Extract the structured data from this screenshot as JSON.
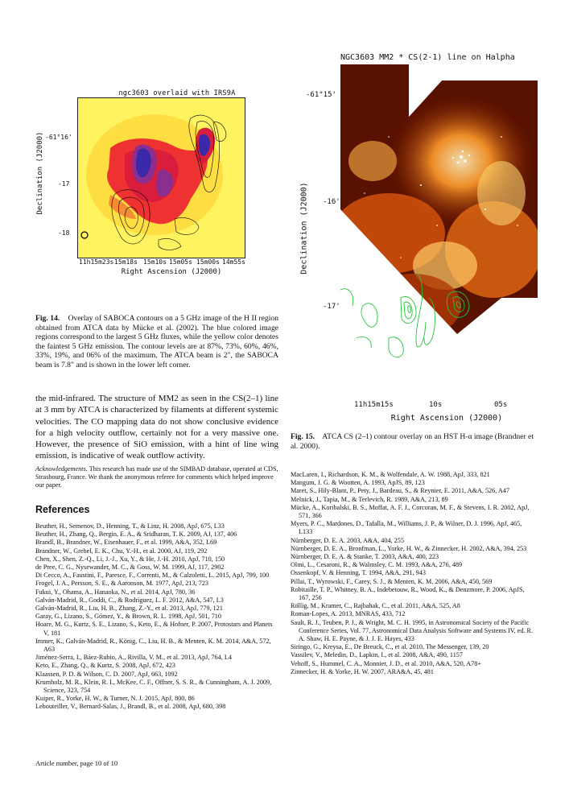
{
  "fig14": {
    "title": "ngc3603 overlaid with IRS9A",
    "ylabel": "Declination (J2000)",
    "xlabel": "Right Ascension (J2000)",
    "yticks": [
      "-61°16'",
      "-17",
      "-18"
    ],
    "xticks": [
      "11h15m23s",
      "15m18s",
      "15m10s",
      "15m05s",
      "15m00s",
      "14m55s"
    ],
    "caption_label": "Fig. 14.",
    "caption_text": "Overlay of SABOCA contours on a 5 GHz image of the H II region obtained from ATCA data by Mücke et al. (2002). The blue colored image regions correspond to the largest 5 GHz fluxes, while the yellow color denotes the faintest 5 GHz emission. The contour levels are at 87%, 73%, 60%, 46%, 33%, 19%, and 06% of the maximum. The ATCA beam is 2\", the SABOCA beam is 7.8\" and is shown in the lower left corner."
  },
  "fig15": {
    "title": "NGC3603 MM2 * CS(2-1) line on Halpha",
    "ylabel": "Declination (J2000)",
    "xlabel": "Right Ascension (J2000)",
    "yticks": [
      "-61°15'",
      "-16'",
      "-17'"
    ],
    "xticks": [
      "11h15m15s",
      "10s",
      "05s"
    ],
    "caption_label": "Fig. 15.",
    "caption_text": "ATCA CS (2–1) contour overlay on an HST H-α image (Brandner et al. 2000)."
  },
  "body_text": "the mid-infrared. The structure of MM2 as seen in the CS(2–1) line at 3 mm by ATCA is characterized by filaments at different systemic velocities. The CO mapping data do not show conclusive evidence for a high velocity outflow, certainly not for a very massive one. However, the presence of SiO emission, with a hint of line wing emission, is indicative of weak outflow activity.",
  "ack_label": "Acknowledgements.",
  "ack_text": "This research has made use of the SIMBAD database, operated at CDS, Strasbourg, France. We thank the anonymous referee for comments which helped improve our paper.",
  "references_heading": "References",
  "refs_left": [
    "Beuther, H., Semenov, D., Henning, T., & Linz, H. 2008, ApJ, 675, L33",
    "Beuther, H., Zhang, Q., Bergin, E. A., & Sridharan, T. K. 2009, AJ, 137, 406",
    "Brandl, B., Brandner, W., Eisenhauer, F., et al. 1999, A&A, 352, L69",
    "Brandner, W., Grebel, E. K., Chu, Y.-H., et al. 2000, AJ, 119, 292",
    "Chen, X., Shen, Z.-Q., Li, J.-J., Xu, Y., & He, J.-H. 2010, ApJ, 710, 150",
    "de Pree, C. G., Nysewander, M. C., & Goss, W. M. 1999, AJ, 117, 2902",
    "Di Cecco, A., Faustini, F., Paresce, F., Correnti, M., & Calzoletti, L. 2015, ApJ, 799, 100",
    "Frogel, J. A., Persson, S. E., & Aaronson, M. 1977, ApJ, 213, 723",
    "Fukui, Y., Ohama, A., Hanaoka, N., et al. 2014, ApJ, 780, 36",
    "Galván-Madrid, R., Goddi, C., & Rodríguez, L. F. 2012, A&A, 547, L3",
    "Galván-Madrid, R., Liu, H. B., Zhang, Z.-Y., et al. 2013, ApJ, 779, 121",
    "Garay, G., Lizano, S., Gómez, Y., & Brown, R. L. 1998, ApJ, 501, 710",
    "Hoare, M. G., Kurtz, S. E., Lizano, S., Keto, E., & Hofner, P. 2007, Protostars and Planets V, 181",
    "Immer, K., Galván-Madrid, R., König, C., Liu, H. B., & Menten, K. M. 2014, A&A, 572, A63",
    "Jiménez-Serra, I., Báez-Rubio, A., Rivilla, V. M., et al. 2013, ApJ, 764, L4",
    "Keto, E., Zhang, Q., & Kurtz, S. 2008, ApJ, 672, 423",
    "Klaassen, P. D. & Wilson, C. D. 2007, ApJ, 663, 1092",
    "Krumholz, M. R., Klein, R. I., McKee, C. F., Offner, S. S. R., & Cunningham, A. J. 2009, Science, 323, 754",
    "Kuiper, R., Yorke, H. W., & Turner, N. J. 2015, ApJ, 800, 86",
    "Lebouteiller, V., Bernard-Salas, J., Brandl, B., et al. 2008, ApJ, 680, 398"
  ],
  "refs_right": [
    "MacLaren, I., Richardson, K. M., & Wolfendale, A. W. 1988, ApJ, 333, 821",
    "Mangum, J. G. & Wootten, A. 1993, ApJS, 89, 123",
    "Maret, S., Hily-Blant, P., Pety, J., Bardeau, S., & Reynier, E. 2011, A&A, 526, A47",
    "Melnick, J., Tapia, M., & Terlevich, R. 1989, A&A, 213, 89",
    "Mücke, A., Koribalski, B. S., Moffat, A. F. J., Corcoran, M. F., & Stevens, I. R. 2002, ApJ, 571, 366",
    "Myers, P. C., Mardones, D., Tafalla, M., Williams, J. P., & Wilner, D. J. 1996, ApJ, 465, L133",
    "Nürnberger, D. E. A. 2003, A&A, 404, 255",
    "Nürnberger, D. E. A., Bronfman, L., Yorke, H. W., & Zinnecker, H. 2002, A&A, 394, 253",
    "Nürnberger, D. E. A. & Stanke, T. 2003, A&A, 400, 223",
    "Olmi, L., Cesaroni, R., & Walmsley, C. M. 1993, A&A, 276, 489",
    "Ossenkopf, V. & Henning, T. 1994, A&A, 291, 943",
    "Pillai, T., Wyrowski, F., Carey, S. J., & Menten, K. M. 2006, A&A, 450, 569",
    "Robitaille, T. P., Whitney, B. A., Indebetouw, R., Wood, K., & Denzmore, P. 2006, ApJS, 167, 256",
    "Röllig, M., Kramer, C., Rajbahak, C., et al. 2011, A&A, 525, A8",
    "Roman-Lopes, A. 2013, MNRAS, 433, 712",
    "Sault, R. J., Teuben, P. J., & Wright, M. C. H. 1995, in Astronomical Society of the Pacific Conference Series, Vol. 77, Astronomical Data Analysis Software and Systems IV, ed. R. A. Shaw, H. E. Payne, & J. J. E. Hayes, 433",
    "Siringo, G., Kreysa, E., De Breuck, C., et al. 2010, The Messenger, 139, 20",
    "Vassilev, V., Meledin, D., Lapkin, I., et al. 2008, A&A, 490, 1157",
    "Vehoff, S., Hummel, C. A., Monnier, J. D., et al. 2010, A&A, 520, A78+",
    "Zinnecker, H. & Yorke, H. W. 2007, ARA&A, 45, 481"
  ],
  "footer": "Article number, page 10 of 10"
}
